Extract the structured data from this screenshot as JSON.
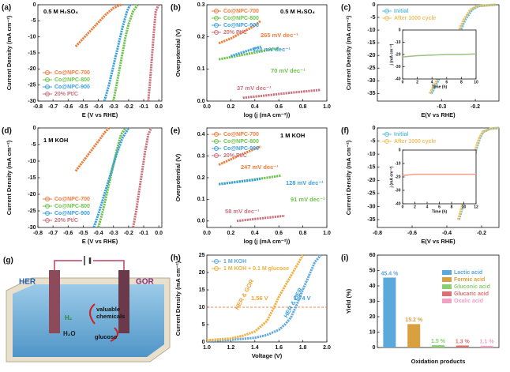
{
  "chart_data": [
    {
      "type": "line",
      "label": "(a)",
      "xlabel": "E (V vs RHE)",
      "ylabel": "Current Density (mA cm⁻²)",
      "xlim": [
        -0.8,
        0.02
      ],
      "ylim": [
        -30,
        0
      ],
      "xticks": [
        -0.8,
        -0.7,
        -0.6,
        -0.5,
        -0.4,
        -0.3,
        -0.2,
        -0.1,
        {
          "value": 0,
          "label": "0.0"
        }
      ],
      "yticks": [
        -30,
        -25,
        -20,
        -15,
        -10,
        -5,
        0
      ],
      "legend": "lower left",
      "annotations": [
        {
          "text": "0.5 M H₂SO₄",
          "color": "#000000"
        }
      ],
      "series": [
        {
          "name": "Co@NPC-700",
          "color": "#f07c3a",
          "x": [
            -0.55,
            -0.5,
            -0.45,
            -0.4,
            -0.35,
            -0.3,
            -0.25
          ],
          "values": [
            -13,
            -10.5,
            -8,
            -5.5,
            -3,
            -1,
            0
          ]
        },
        {
          "name": "Co@NPC-800",
          "color": "#6cc24a",
          "x": [
            -0.3,
            -0.28,
            -0.26,
            -0.24,
            -0.22,
            -0.2,
            -0.17,
            -0.14
          ],
          "values": [
            -30,
            -25,
            -20,
            -15,
            -10,
            -6,
            -2,
            0
          ]
        },
        {
          "name": "Co@NPC-900",
          "color": "#3b9fdc",
          "x": [
            -0.36,
            -0.33,
            -0.3,
            -0.27,
            -0.24,
            -0.21,
            -0.19
          ],
          "values": [
            -30,
            -25,
            -19,
            -13,
            -7,
            -2,
            0
          ]
        },
        {
          "name": "20% Pt/C",
          "color": "#c9727e",
          "x": [
            -0.07,
            -0.06,
            -0.05,
            -0.04,
            -0.03,
            -0.02,
            0
          ],
          "values": [
            -30,
            -25,
            -19,
            -13,
            -7,
            -2,
            0
          ]
        }
      ]
    },
    {
      "type": "line",
      "label": "(b)",
      "xlabel": "log (j (mA cm⁻²))",
      "ylabel": "Overpotential (V)",
      "xlim": [
        0,
        1
      ],
      "ylim": [
        0,
        0.3
      ],
      "xticks": [
        {
          "value": 0,
          "label": "0.0"
        },
        0.2,
        0.4,
        0.6,
        0.8,
        {
          "value": 1,
          "label": "1.0"
        }
      ],
      "yticks": [
        {
          "value": 0,
          "label": "0.0"
        },
        0.1,
        0.2,
        0.3
      ],
      "legend": "upper left",
      "annotations": [
        {
          "text": "0.5 M H₂SO₄",
          "color": "#000000"
        },
        {
          "text": "265 mV dec⁻¹",
          "color": "#f07c3a"
        },
        {
          "text": "120 mV dec⁻¹",
          "color": "#3b9fdc"
        },
        {
          "text": "70 mV dec⁻¹",
          "color": "#6cc24a"
        },
        {
          "text": "37 mV dec⁻¹",
          "color": "#c9727e"
        }
      ],
      "series": [
        {
          "name": "Co@NPC-700",
          "color": "#f07c3a",
          "x": [
            0.1,
            0.2,
            0.3,
            0.4,
            0.45
          ],
          "values": [
            0.18,
            0.195,
            0.215,
            0.235,
            0.25
          ]
        },
        {
          "name": "Co@NPC-800",
          "color": "#6cc24a",
          "x": [
            0.1,
            0.2,
            0.3,
            0.4,
            0.5,
            0.6
          ],
          "values": [
            0.13,
            0.137,
            0.144,
            0.151,
            0.158,
            0.165
          ]
        },
        {
          "name": "Co@NPC-900",
          "color": "#3b9fdc",
          "x": [
            0.2,
            0.3,
            0.4,
            0.45
          ],
          "values": [
            0.14,
            0.152,
            0.164,
            0.17
          ]
        },
        {
          "name": "20% Pt/C",
          "color": "#c9727e",
          "x": [
            0.3,
            0.5,
            0.7,
            0.95
          ],
          "values": [
            0.01,
            0.018,
            0.026,
            0.035
          ]
        }
      ]
    },
    {
      "type": "line",
      "label": "(c)",
      "xlabel": "E(V vs RHE)",
      "ylabel": "Current Density (mA cm⁻²)",
      "xlim": [
        -0.49,
        -0.13
      ],
      "ylim": [
        -38,
        0
      ],
      "xticks": [
        -0.3,
        -0.2
      ],
      "yticks": [
        -35,
        -30,
        -25,
        -20,
        -15,
        -10,
        -5,
        0
      ],
      "legend": "upper left",
      "series": [
        {
          "name": "Initial",
          "color": "#5fbfe0",
          "x": [
            -0.33,
            -0.31,
            -0.29,
            -0.27,
            -0.25,
            -0.23,
            -0.21,
            -0.19,
            -0.14
          ],
          "values": [
            -35,
            -30,
            -24,
            -18,
            -12,
            -6,
            -2,
            -0.5,
            0
          ]
        },
        {
          "name": "After 1000 cycle",
          "color": "#f0c060",
          "x": [
            -0.335,
            -0.315,
            -0.295,
            -0.275,
            -0.255,
            -0.235,
            -0.215,
            -0.195,
            -0.14
          ],
          "values": [
            -35,
            -30,
            -24,
            -18,
            -12,
            -6,
            -2,
            -0.5,
            0
          ]
        }
      ],
      "inset": {
        "type": "line",
        "xlabel": "Time (h)",
        "ylabel": "j (mA cm⁻²)",
        "xlim": [
          0,
          10
        ],
        "ylim": [
          -40,
          0
        ],
        "xticks": [
          0,
          2,
          4,
          6,
          8,
          10
        ],
        "yticks": [
          -40,
          -30,
          -20,
          -10,
          0
        ],
        "series": [
          {
            "color": "#9dc183",
            "x": [
              0,
              2,
              4,
              6,
              8,
              10
            ],
            "values": [
              -22,
              -21,
              -20.5,
              -20,
              -20,
              -19.5
            ]
          }
        ]
      }
    },
    {
      "type": "line",
      "label": "(d)",
      "xlabel": "E (V vs RHE)",
      "ylabel": "Current Density (mA cm⁻²)",
      "xlim": [
        -0.8,
        0.02
      ],
      "ylim": [
        -30,
        0
      ],
      "xticks": [
        -0.8,
        -0.7,
        -0.6,
        -0.5,
        -0.4,
        -0.3,
        -0.2,
        -0.1,
        {
          "value": 0,
          "label": "0.0"
        }
      ],
      "yticks": [
        -30,
        -25,
        -20,
        -15,
        -10,
        -5,
        0
      ],
      "legend": "lower left",
      "annotations": [
        {
          "text": "1 M KOH",
          "color": "#000000"
        }
      ],
      "series": [
        {
          "name": "Co@NPC-700",
          "color": "#f07c3a",
          "x": [
            -0.55,
            -0.5,
            -0.45,
            -0.4,
            -0.36,
            -0.33
          ],
          "values": [
            -13,
            -10,
            -7,
            -4,
            -1.5,
            0
          ]
        },
        {
          "name": "Co@NPC-800",
          "color": "#6cc24a",
          "x": [
            -0.4,
            -0.37,
            -0.34,
            -0.31,
            -0.28,
            -0.25,
            -0.22
          ],
          "values": [
            -30,
            -25,
            -19,
            -13,
            -7,
            -2,
            0
          ]
        },
        {
          "name": "Co@NPC-900",
          "color": "#3b9fdc",
          "x": [
            -0.43,
            -0.4,
            -0.36,
            -0.32,
            -0.28,
            -0.24,
            -0.2
          ],
          "values": [
            -30,
            -26,
            -20,
            -14,
            -8,
            -3,
            0
          ]
        },
        {
          "name": "20% Pt/C",
          "color": "#c9727e",
          "x": [
            -0.17,
            -0.15,
            -0.13,
            -0.11,
            -0.09,
            -0.07,
            -0.05
          ],
          "values": [
            -30,
            -25,
            -19,
            -13,
            -7,
            -2,
            0
          ]
        }
      ]
    },
    {
      "type": "line",
      "label": "(e)",
      "xlabel": "log (j (mA cm⁻²))",
      "ylabel": "Overpotential (V)",
      "xlim": [
        0,
        1
      ],
      "ylim": [
        -0.03,
        0.43
      ],
      "xticks": [
        {
          "value": 0,
          "label": "0.0"
        },
        0.2,
        0.4,
        0.6,
        0.8,
        {
          "value": 1,
          "label": "1.0"
        }
      ],
      "yticks": [
        {
          "value": 0,
          "label": "0.0"
        },
        0.1,
        0.2,
        0.3,
        0.4
      ],
      "legend": "upper left",
      "annotations": [
        {
          "text": "1 M KOH",
          "color": "#000000"
        },
        {
          "text": "247 mV dec⁻¹",
          "color": "#f07c3a"
        },
        {
          "text": "128 mV dec⁻¹",
          "color": "#3b9fdc"
        },
        {
          "text": "91 mV dec⁻¹",
          "color": "#6cc24a"
        },
        {
          "text": "58 mV dec⁻¹",
          "color": "#c9727e"
        }
      ],
      "series": [
        {
          "name": "Co@NPC-700",
          "color": "#f07c3a",
          "x": [
            0.1,
            0.2,
            0.3,
            0.45
          ],
          "values": [
            0.26,
            0.285,
            0.31,
            0.345
          ]
        },
        {
          "name": "Co@NPC-800",
          "color": "#6cc24a",
          "x": [
            0.1,
            0.3,
            0.5,
            0.62
          ],
          "values": [
            0.17,
            0.185,
            0.2,
            0.21
          ]
        },
        {
          "name": "Co@NPC-900",
          "color": "#3b9fdc",
          "x": [
            0.1,
            0.25,
            0.4,
            0.45
          ],
          "values": [
            0.17,
            0.18,
            0.19,
            0.195
          ]
        },
        {
          "name": "20% Pt/C",
          "color": "#c9727e",
          "x": [
            0.25,
            0.4,
            0.55,
            0.65
          ],
          "values": [
            0.0,
            0.009,
            0.018,
            0.024
          ]
        }
      ]
    },
    {
      "type": "line",
      "label": "(f)",
      "xlabel": "E(V vs RHE)",
      "ylabel": "Current Density (mA cm⁻²)",
      "xlim": [
        -0.8,
        -0.1
      ],
      "ylim": [
        -38,
        0
      ],
      "xticks": [
        -0.8,
        -0.6,
        -0.4,
        -0.2
      ],
      "yticks": [
        -35,
        -30,
        -25,
        -20,
        -15,
        -10,
        -5,
        0
      ],
      "legend": "upper left",
      "series": [
        {
          "name": "Initial",
          "color": "#5fbfe0",
          "x": [
            -0.33,
            -0.3,
            -0.27,
            -0.25,
            -0.23,
            -0.21,
            -0.19,
            -0.15,
            -0.1
          ],
          "values": [
            -35,
            -28,
            -20,
            -14,
            -8,
            -4,
            -1.5,
            -0.3,
            0
          ]
        },
        {
          "name": "After 1000 cycle",
          "color": "#f0c060",
          "x": [
            -0.335,
            -0.305,
            -0.275,
            -0.255,
            -0.235,
            -0.215,
            -0.195,
            -0.15,
            -0.1
          ],
          "values": [
            -35,
            -28,
            -20,
            -14,
            -8,
            -4,
            -1.5,
            -0.3,
            0
          ]
        }
      ],
      "inset": {
        "type": "line",
        "xlabel": "Time (h)",
        "ylabel": "j (mA cm⁻²)",
        "xlim": [
          0,
          12
        ],
        "ylim": [
          -40,
          0
        ],
        "xticks": [
          0,
          2,
          4,
          6,
          8,
          10,
          12
        ],
        "yticks": [
          -40,
          -30,
          -20,
          -10,
          0
        ],
        "series": [
          {
            "color": "#f0a080",
            "x": [
              0,
              2,
              4,
              6,
              8,
              10,
              12
            ],
            "values": [
              -19,
              -18,
              -18,
              -18,
              -18,
              -18,
              -18
            ]
          }
        ]
      }
    },
    {
      "type": "line",
      "label": "(h)",
      "xlabel": "Voltage (V)",
      "ylabel": "Current Density (mA cm⁻²)",
      "xlim": [
        1,
        2
      ],
      "ylim": [
        0,
        25
      ],
      "xticks": [
        {
          "value": 1,
          "label": "1.0"
        },
        1.2,
        1.4,
        1.6,
        1.8,
        {
          "value": 2,
          "label": "2.0"
        }
      ],
      "yticks": [
        0,
        5,
        10,
        15,
        20,
        25
      ],
      "legend": "upper left",
      "hline": {
        "value": 10,
        "color": "#e06020"
      },
      "annotations": [
        {
          "text": "1.56 V",
          "color": "#f0a030"
        },
        {
          "text": "1.74 V",
          "color": "#3b9fdc"
        },
        {
          "text": "HER & GOR",
          "color": "#f0a030"
        },
        {
          "text": "HER & OER",
          "color": "#3b9fdc"
        }
      ],
      "series": [
        {
          "name": "1 M KOH",
          "color": "#5fa8e0",
          "x": [
            1,
            1.2,
            1.4,
            1.5,
            1.6,
            1.65,
            1.7,
            1.74,
            1.8,
            1.85,
            1.9,
            1.95
          ],
          "values": [
            0.3,
            0.6,
            1.2,
            2,
            3.5,
            5,
            7,
            10,
            15,
            19,
            23,
            25
          ]
        },
        {
          "name": "1 M KOH + 0.1 M glucose",
          "color": "#f0b040",
          "x": [
            1,
            1.2,
            1.3,
            1.4,
            1.5,
            1.56,
            1.6,
            1.65,
            1.7,
            1.75,
            1.8
          ],
          "values": [
            0.5,
            1,
            1.8,
            3,
            6,
            10,
            13,
            16,
            19,
            22,
            25
          ]
        }
      ]
    },
    {
      "type": "bar",
      "label": "(i)",
      "xlabel": "Oxidation products",
      "ylabel": "Yield (%)",
      "ylim": [
        0,
        60
      ],
      "yticks": [
        0,
        10,
        20,
        30,
        40,
        50,
        60
      ],
      "legend": "upper right",
      "categories": [
        "Lactic acid",
        "Formic acid",
        "Gluconic acid",
        "Glucaric acid",
        "Oxalic acid"
      ],
      "values": [
        45.4,
        15.2,
        1.5,
        1.3,
        1.1
      ],
      "value_labels": [
        "45.4 %",
        "15.2 %",
        "1.5 %",
        "1.3 %",
        "1.1 %"
      ],
      "colors": [
        "#5aa8dc",
        "#d9a040",
        "#8ad070",
        "#e07070",
        "#f0a0c0"
      ]
    }
  ],
  "diagram": {
    "label": "(g)",
    "her": "HER",
    "gor": "GOR",
    "h2": "H₂",
    "h2o": "H₂O",
    "products": [
      "valuable",
      "chemicals"
    ],
    "glucose": "glucose"
  }
}
